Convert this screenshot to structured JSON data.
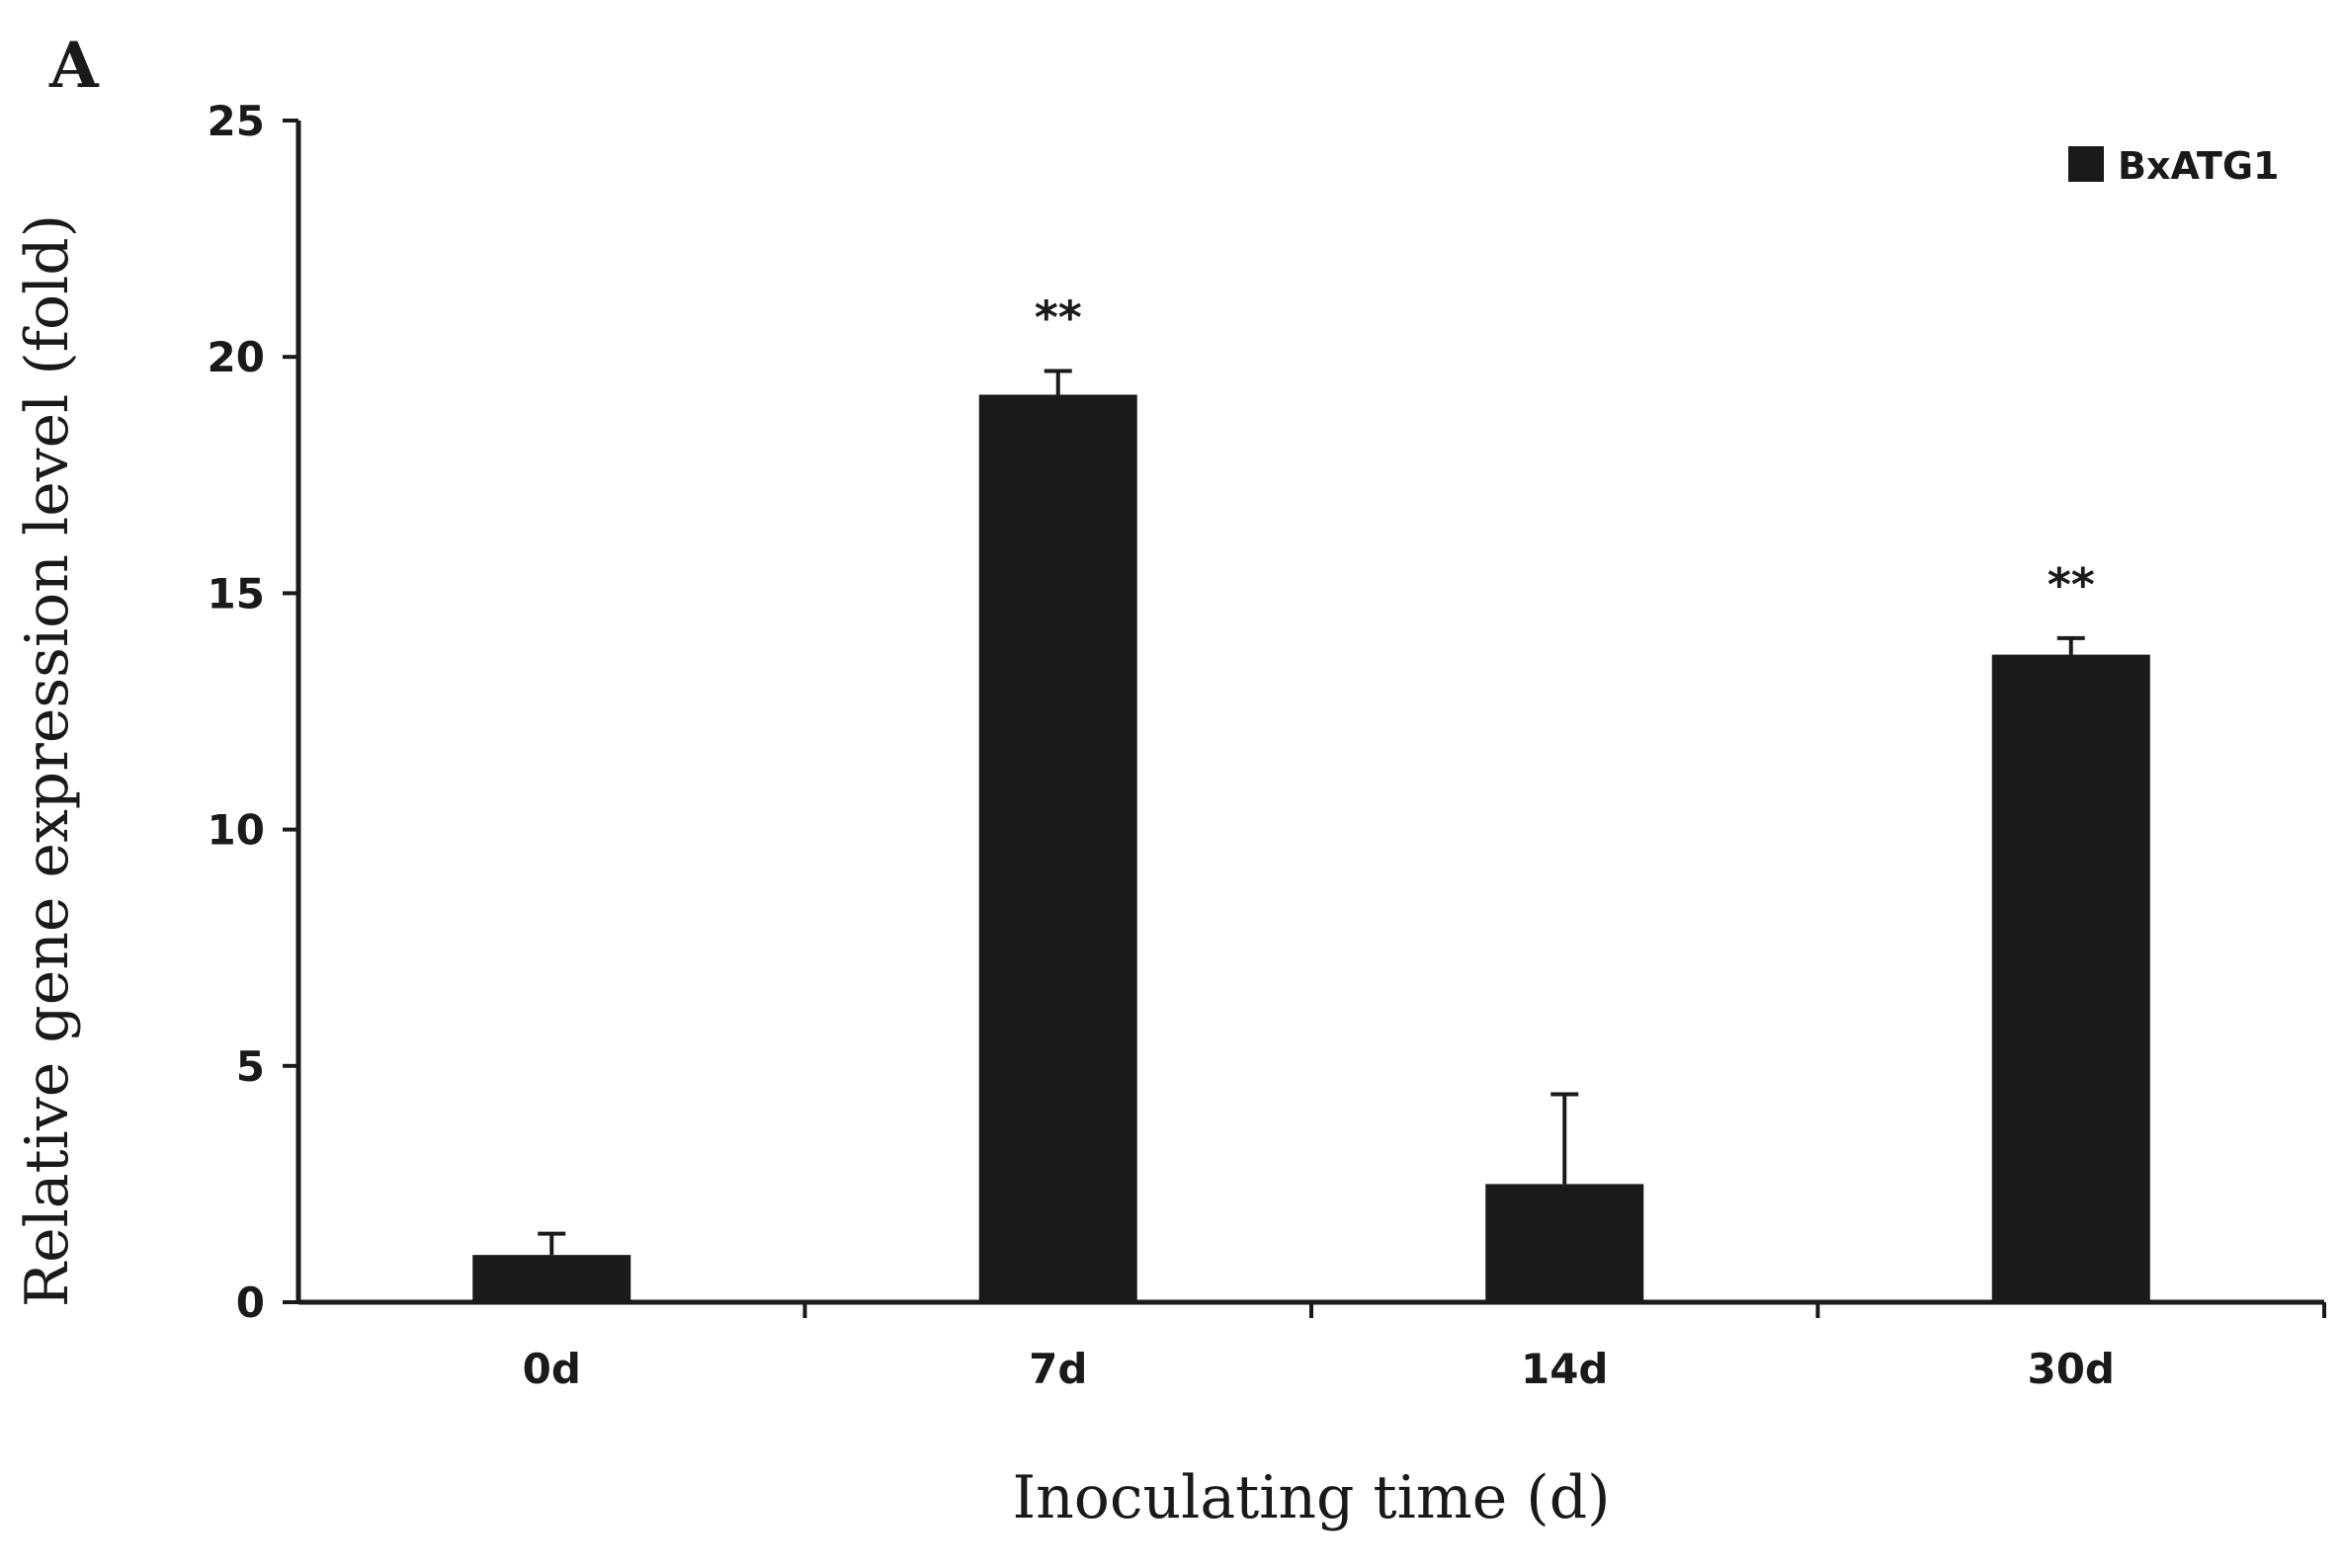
{
  "panel_label": "A",
  "chart_data": {
    "type": "bar",
    "categories": [
      "0d",
      "7d",
      "14d",
      "30d"
    ],
    "series": [
      {
        "name": "BxATG1",
        "values": [
          1.0,
          19.2,
          2.5,
          13.7
        ],
        "errors": [
          0.45,
          0.5,
          1.9,
          0.35
        ],
        "significance": [
          "",
          "**",
          "",
          "**"
        ],
        "color": "#1a1a1a"
      }
    ],
    "xlabel": "Inoculating time (d)",
    "ylabel": "Relative gene expression level (fold)",
    "ylim": [
      0,
      25
    ],
    "yticks": [
      0,
      5,
      10,
      15,
      20,
      25
    ],
    "grid": false,
    "legend": "top-right"
  }
}
